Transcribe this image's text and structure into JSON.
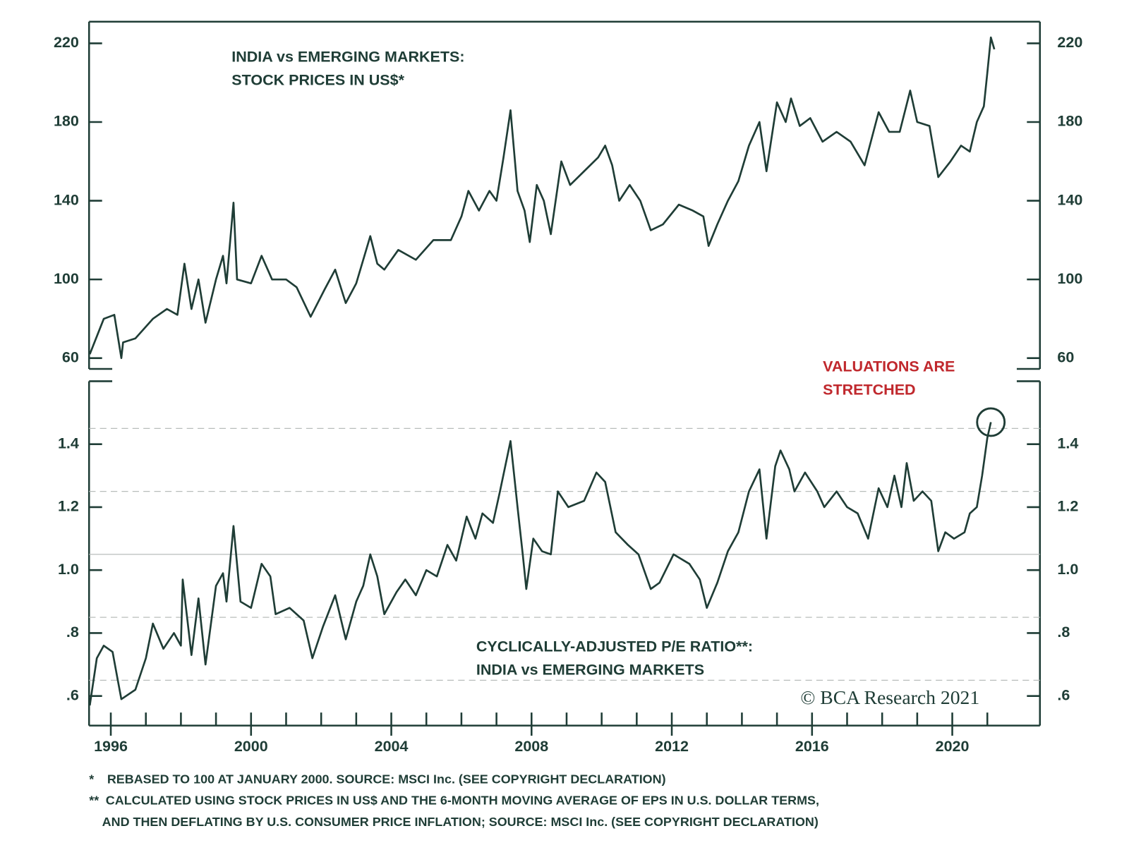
{
  "chart_data": [
    {
      "type": "line",
      "title": [
        "INDIA vs EMERGING MARKETS:",
        "STOCK PRICES IN US$*"
      ],
      "color": "#1f3d36",
      "xlim": [
        1995.38,
        2022.5
      ],
      "ylim": [
        54.5,
        231
      ],
      "yticks": [
        60,
        100,
        140,
        180,
        220
      ],
      "x": [
        1995.4,
        1995.8,
        1996.1,
        1996.3,
        1996.35,
        1996.7,
        1997.2,
        1997.6,
        1997.9,
        1998.1,
        1998.3,
        1998.5,
        1998.7,
        1999.0,
        1999.2,
        1999.3,
        1999.5,
        1999.6,
        2000.0,
        2000.3,
        2000.6,
        2001.0,
        2001.3,
        2001.7,
        2002.1,
        2002.4,
        2002.7,
        2003.0,
        2003.4,
        2003.6,
        2003.8,
        2004.2,
        2004.7,
        2005.2,
        2005.7,
        2006.0,
        2006.2,
        2006.5,
        2006.8,
        2007.0,
        2007.2,
        2007.4,
        2007.6,
        2007.8,
        2007.95,
        2008.15,
        2008.35,
        2008.55,
        2008.85,
        2009.1,
        2009.5,
        2009.9,
        2010.1,
        2010.3,
        2010.5,
        2010.8,
        2011.1,
        2011.4,
        2011.75,
        2012.2,
        2012.6,
        2012.9,
        2013.05,
        2013.3,
        2013.6,
        2013.9,
        2014.2,
        2014.5,
        2014.7,
        2015.0,
        2015.25,
        2015.4,
        2015.65,
        2015.95,
        2016.3,
        2016.7,
        2017.1,
        2017.5,
        2017.9,
        2018.2,
        2018.5,
        2018.8,
        2019.0,
        2019.35,
        2019.6,
        2019.95,
        2020.25,
        2020.5,
        2020.7,
        2020.9,
        2021.0,
        2021.1,
        2021.2
      ],
      "values": [
        62,
        80,
        82,
        60,
        68,
        70,
        80,
        85,
        82,
        108,
        85,
        100,
        78,
        100,
        112,
        98,
        139,
        100,
        98,
        112,
        100,
        100,
        96,
        81,
        95,
        105,
        88,
        98,
        122,
        108,
        105,
        115,
        110,
        120,
        120,
        132,
        145,
        135,
        145,
        140,
        162,
        186,
        145,
        135,
        119,
        148,
        140,
        123,
        160,
        148,
        155,
        162,
        168,
        158,
        140,
        148,
        140,
        125,
        128,
        138,
        135,
        132,
        117,
        128,
        140,
        150,
        168,
        180,
        155,
        190,
        180,
        192,
        178,
        182,
        170,
        175,
        170,
        158,
        185,
        175,
        175,
        196,
        180,
        178,
        152,
        160,
        168,
        165,
        180,
        188,
        205,
        223,
        217
      ]
    },
    {
      "type": "line",
      "title": [
        "CYCLICALLY-ADJUSTED P/E RATIO**:",
        "INDIA vs EMERGING MARKETS"
      ],
      "color": "#1f3d36",
      "xlim": [
        1995.38,
        2022.5
      ],
      "ylim": [
        0.506,
        1.6
      ],
      "yticks": [
        {
          "value": 0.6,
          "label": ".6"
        },
        {
          "value": 0.8,
          "label": ".8"
        },
        {
          "value": 1.0,
          "label": "1.0"
        },
        1.2,
        1.4
      ],
      "xticks": [
        1996,
        2000,
        2004,
        2008,
        2012,
        2016,
        2020
      ],
      "xticks_minor": [
        1996,
        1997,
        1998,
        1999,
        2000,
        2001,
        2002,
        2003,
        2004,
        2005,
        2006,
        2007,
        2008,
        2009,
        2010,
        2011,
        2012,
        2013,
        2014,
        2015,
        2016,
        2017,
        2018,
        2019,
        2020,
        2021
      ],
      "hlines": [
        {
          "value": 1.45,
          "style": "dashed"
        },
        {
          "value": 1.25,
          "style": "dashed"
        },
        {
          "value": 1.05,
          "style": "solid"
        },
        {
          "value": 0.85,
          "style": "dashed"
        },
        {
          "value": 0.65,
          "style": "dashed"
        }
      ],
      "annotation": {
        "text": [
          "VALUATIONS ARE",
          "STRETCHED"
        ],
        "color": "#c0282d"
      },
      "x": [
        1995.4,
        1995.6,
        1995.8,
        1996.05,
        1996.2,
        1996.3,
        1996.7,
        1997.0,
        1997.2,
        1997.5,
        1997.8,
        1998.0,
        1998.05,
        1998.3,
        1998.5,
        1998.7,
        1999.0,
        1999.2,
        1999.3,
        1999.5,
        1999.7,
        2000.0,
        2000.3,
        2000.55,
        2000.7,
        2001.1,
        2001.5,
        2001.75,
        2002.05,
        2002.4,
        2002.7,
        2003.0,
        2003.2,
        2003.4,
        2003.6,
        2003.8,
        2004.15,
        2004.4,
        2004.7,
        2005.0,
        2005.3,
        2005.6,
        2005.85,
        2006.15,
        2006.4,
        2006.6,
        2006.9,
        2007.1,
        2007.4,
        2007.6,
        2007.75,
        2007.85,
        2008.05,
        2008.3,
        2008.55,
        2008.75,
        2009.05,
        2009.5,
        2009.85,
        2010.1,
        2010.4,
        2010.75,
        2011.05,
        2011.4,
        2011.65,
        2012.05,
        2012.5,
        2012.8,
        2013.0,
        2013.3,
        2013.6,
        2013.9,
        2014.2,
        2014.5,
        2014.7,
        2014.95,
        2015.1,
        2015.35,
        2015.5,
        2015.8,
        2016.15,
        2016.35,
        2016.7,
        2017.0,
        2017.3,
        2017.6,
        2017.9,
        2018.15,
        2018.35,
        2018.55,
        2018.7,
        2018.9,
        2019.15,
        2019.4,
        2019.6,
        2019.8,
        2020.05,
        2020.35,
        2020.5,
        2020.7,
        2020.85,
        2021.0,
        2021.1
      ],
      "values": [
        0.57,
        0.72,
        0.76,
        0.74,
        0.65,
        0.59,
        0.62,
        0.72,
        0.83,
        0.75,
        0.8,
        0.76,
        0.97,
        0.73,
        0.91,
        0.7,
        0.95,
        0.99,
        0.9,
        1.14,
        0.9,
        0.88,
        1.02,
        0.98,
        0.86,
        0.88,
        0.84,
        0.72,
        0.82,
        0.92,
        0.78,
        0.9,
        0.95,
        1.05,
        0.98,
        0.86,
        0.93,
        0.97,
        0.92,
        1.0,
        0.98,
        1.08,
        1.03,
        1.17,
        1.1,
        1.18,
        1.15,
        1.25,
        1.41,
        1.2,
        1.05,
        0.94,
        1.1,
        1.06,
        1.05,
        1.25,
        1.2,
        1.22,
        1.31,
        1.28,
        1.12,
        1.08,
        1.05,
        0.94,
        0.96,
        1.05,
        1.02,
        0.97,
        0.88,
        0.96,
        1.06,
        1.12,
        1.25,
        1.32,
        1.1,
        1.33,
        1.38,
        1.32,
        1.25,
        1.31,
        1.25,
        1.2,
        1.25,
        1.2,
        1.18,
        1.1,
        1.26,
        1.2,
        1.3,
        1.2,
        1.34,
        1.22,
        1.25,
        1.22,
        1.06,
        1.12,
        1.1,
        1.12,
        1.18,
        1.2,
        1.3,
        1.42,
        1.47
      ]
    }
  ],
  "copyright": "© BCA Research 2021",
  "footnotes": [
    {
      "marker": "*",
      "lines": [
        "REBASED TO 100 AT JANUARY 2000. SOURCE: MSCI Inc. (SEE COPYRIGHT DECLARATION)"
      ]
    },
    {
      "marker": "**",
      "lines": [
        "CALCULATED USING STOCK PRICES IN US$ AND THE 6-MONTH MOVING AVERAGE OF EPS IN U.S. DOLLAR TERMS,",
        "AND THEN DEFLATING BY U.S. CONSUMER PRICE INFLATION; SOURCE: MSCI Inc. (SEE COPYRIGHT DECLARATION)"
      ]
    }
  ]
}
